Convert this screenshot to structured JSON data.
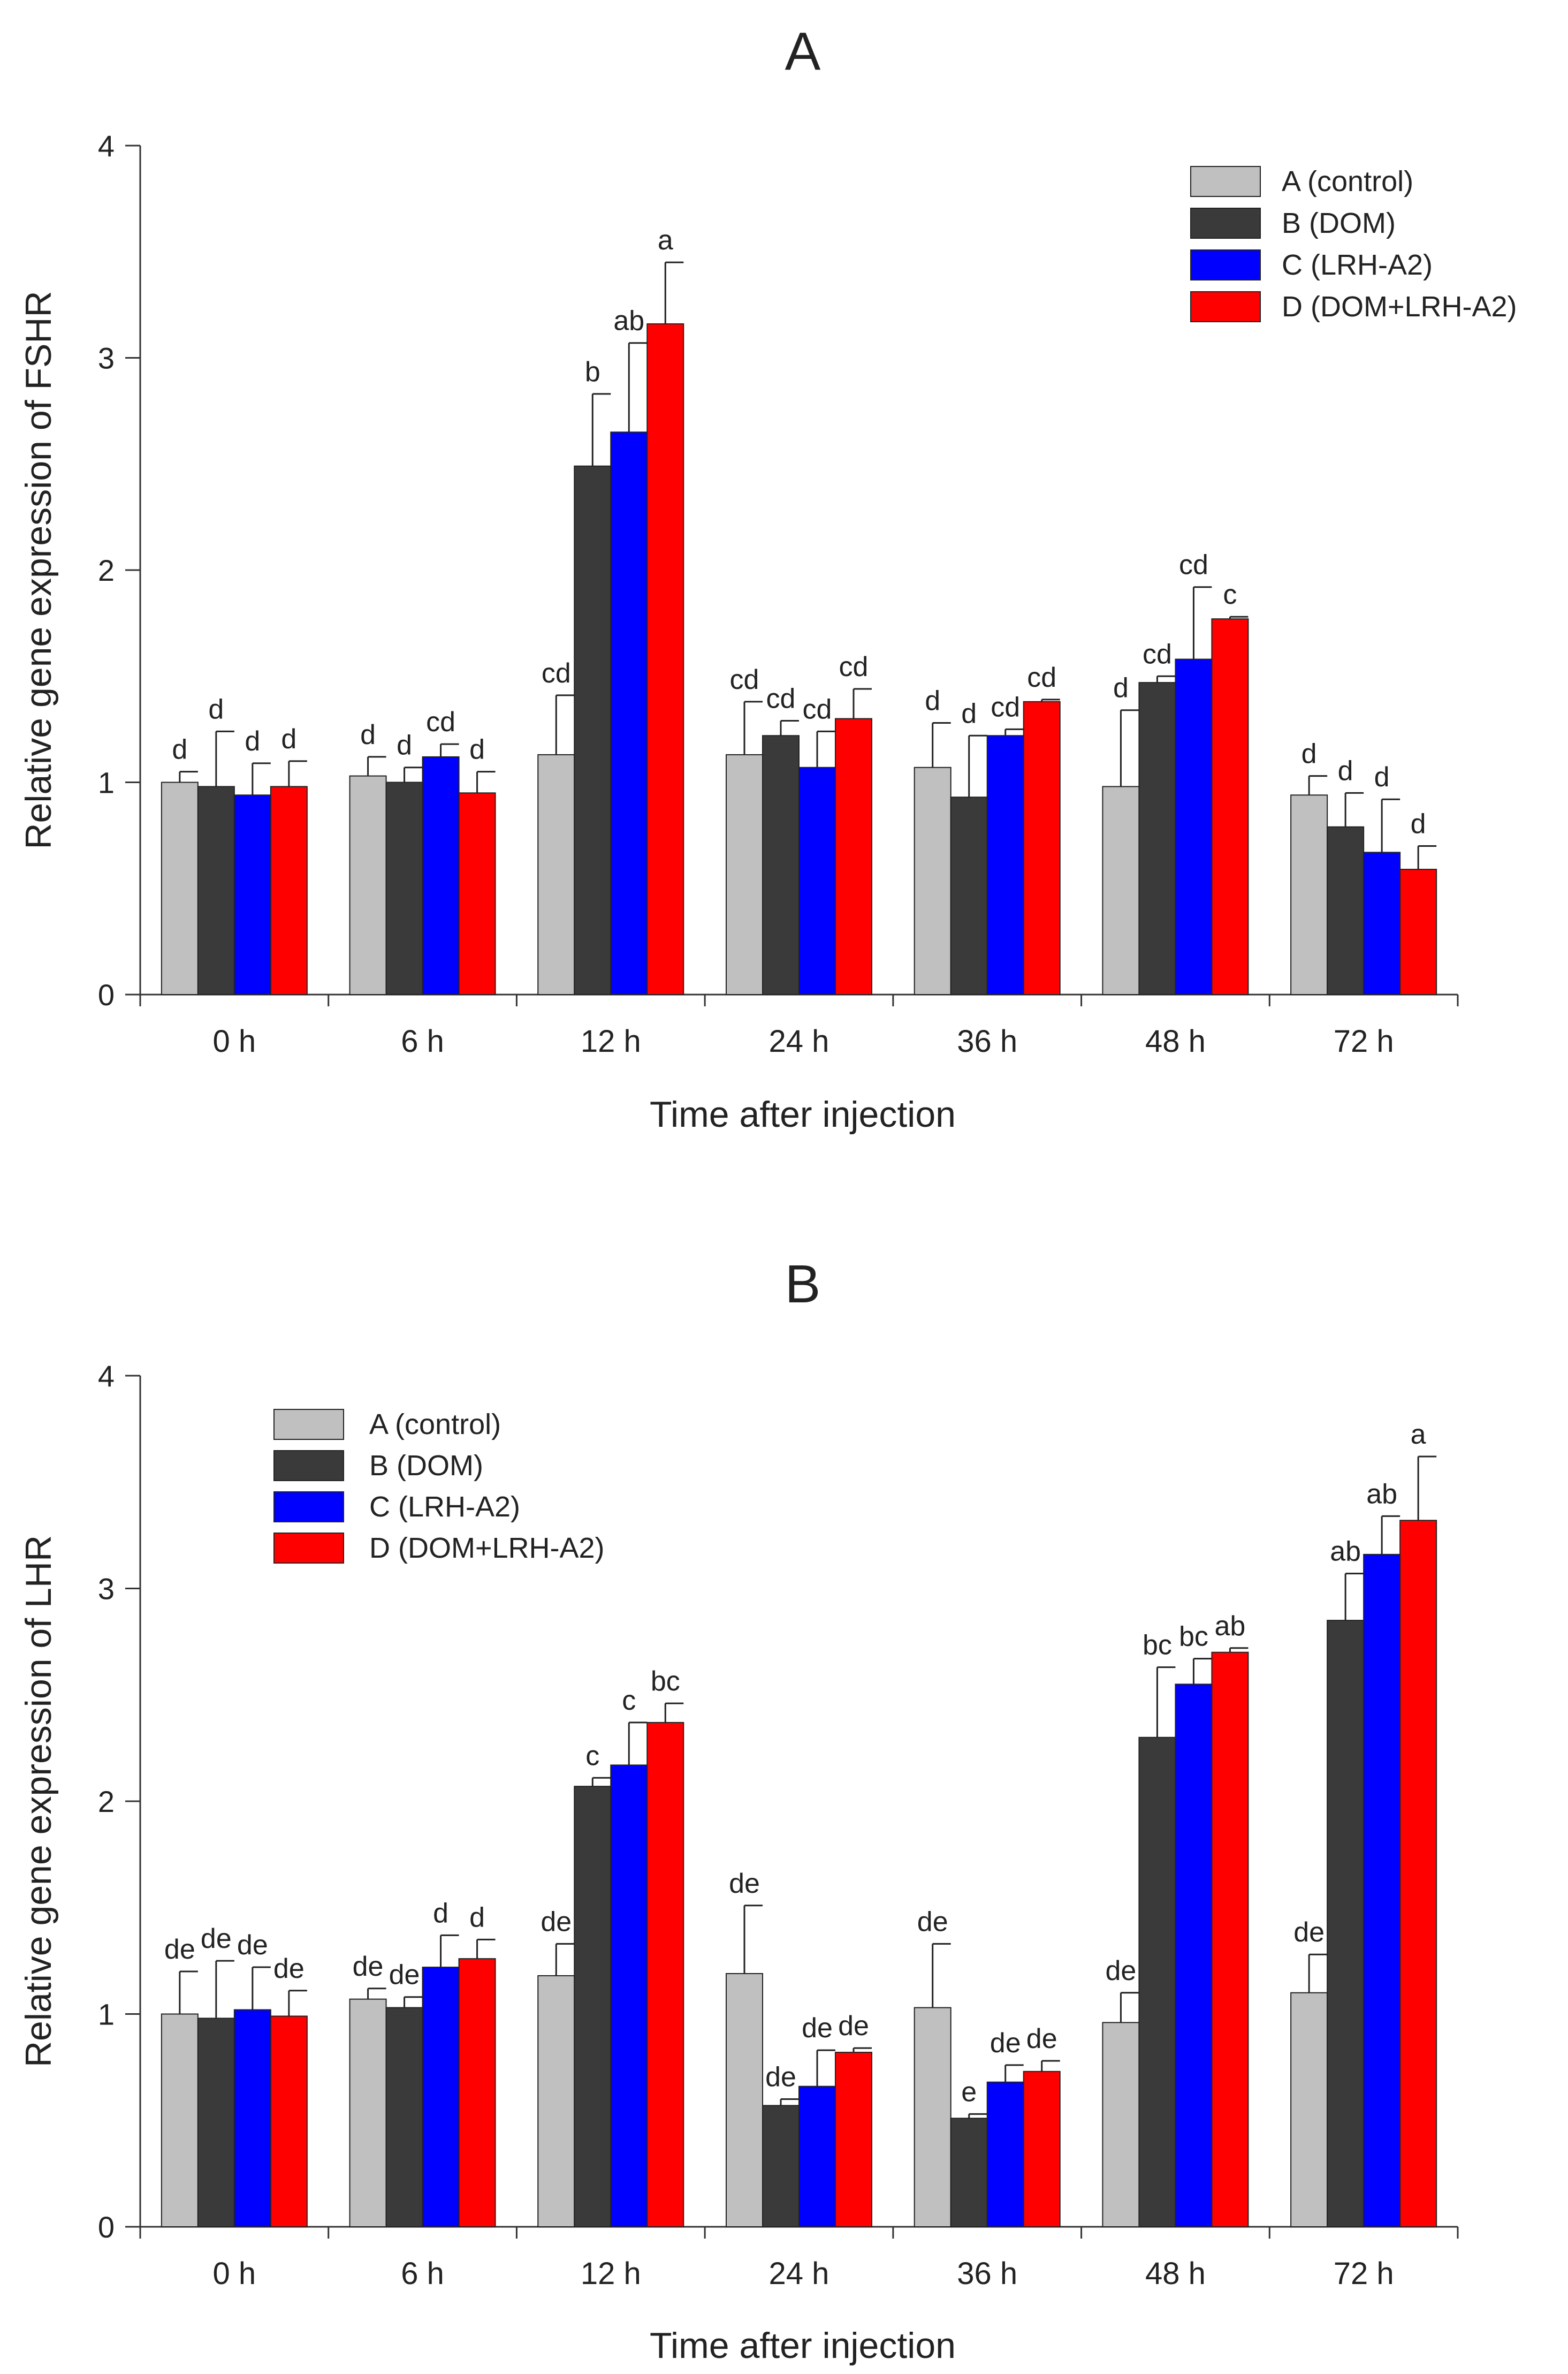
{
  "chart_data": [
    {
      "id": "A",
      "type": "bar",
      "title": "A",
      "xlabel": "Time after injection",
      "ylabel": "Relative gene expression of FSHR",
      "ylim": [
        0,
        4
      ],
      "yticks": [
        "0",
        "1",
        "2",
        "3",
        "4"
      ],
      "categories": [
        "0 h",
        "6 h",
        "12 h",
        "24 h",
        "36 h",
        "48 h",
        "72 h"
      ],
      "legend_position": "top-right",
      "series": [
        {
          "name": "A (control)",
          "color": "#c0c0c0",
          "values": [
            1.0,
            1.03,
            1.13,
            1.13,
            1.07,
            0.98,
            0.94
          ],
          "errors": [
            0.05,
            0.09,
            0.28,
            0.25,
            0.21,
            0.36,
            0.09
          ],
          "labels": [
            "d",
            "d",
            "cd",
            "cd",
            "d",
            "d",
            "d"
          ]
        },
        {
          "name": "B (DOM)",
          "color": "#3a3a3a",
          "values": [
            0.98,
            1.0,
            2.49,
            1.22,
            0.93,
            1.47,
            0.79
          ],
          "errors": [
            0.26,
            0.07,
            0.34,
            0.07,
            0.29,
            0.03,
            0.16
          ],
          "labels": [
            "d",
            "d",
            "b",
            "cd",
            "d",
            "cd",
            "d"
          ]
        },
        {
          "name": "C (LRH-A2)",
          "color": "#0000ff",
          "values": [
            0.94,
            1.12,
            2.65,
            1.07,
            1.22,
            1.58,
            0.67
          ],
          "errors": [
            0.15,
            0.06,
            0.42,
            0.17,
            0.03,
            0.34,
            0.25
          ],
          "labels": [
            "d",
            "cd",
            "ab",
            "cd",
            "cd",
            "cd",
            "d"
          ]
        },
        {
          "name": "D (DOM+LRH-A2)",
          "color": "#ff0000",
          "values": [
            0.98,
            0.95,
            3.16,
            1.3,
            1.38,
            1.77,
            0.59
          ],
          "errors": [
            0.12,
            0.1,
            0.29,
            0.14,
            0.01,
            0.01,
            0.11
          ],
          "labels": [
            "d",
            "d",
            "a",
            "cd",
            "cd",
            "c",
            "d"
          ]
        }
      ]
    },
    {
      "id": "B",
      "type": "bar",
      "title": "B",
      "xlabel": "Time after injection",
      "ylabel": "Relative gene expression of LHR",
      "ylim": [
        0,
        4
      ],
      "yticks": [
        "0",
        "1",
        "2",
        "3",
        "4"
      ],
      "categories": [
        "0 h",
        "6 h",
        "12 h",
        "24 h",
        "36 h",
        "48 h",
        "72 h"
      ],
      "legend_position": "top-left",
      "series": [
        {
          "name": "A (control)",
          "color": "#c0c0c0",
          "values": [
            1.0,
            1.07,
            1.18,
            1.19,
            1.03,
            0.96,
            1.1
          ],
          "errors": [
            0.2,
            0.05,
            0.15,
            0.32,
            0.3,
            0.14,
            0.18
          ],
          "labels": [
            "de",
            "de",
            "de",
            "de",
            "de",
            "de",
            "de"
          ]
        },
        {
          "name": "B (DOM)",
          "color": "#3a3a3a",
          "values": [
            0.98,
            1.03,
            2.07,
            0.57,
            0.51,
            2.3,
            2.85
          ],
          "errors": [
            0.27,
            0.05,
            0.04,
            0.03,
            0.02,
            0.33,
            0.22
          ],
          "labels": [
            "de",
            "de",
            "c",
            "de",
            "e",
            "bc",
            "ab"
          ]
        },
        {
          "name": "C (LRH-A2)",
          "color": "#0000ff",
          "values": [
            1.02,
            1.22,
            2.17,
            0.66,
            0.68,
            2.55,
            3.16
          ],
          "errors": [
            0.2,
            0.15,
            0.2,
            0.17,
            0.08,
            0.12,
            0.18
          ],
          "labels": [
            "de",
            "d",
            "c",
            "de",
            "de",
            "bc",
            "ab"
          ]
        },
        {
          "name": "D (DOM+LRH-A2)",
          "color": "#ff0000",
          "values": [
            0.99,
            1.26,
            2.37,
            0.82,
            0.73,
            2.7,
            3.32
          ],
          "errors": [
            0.12,
            0.09,
            0.09,
            0.02,
            0.05,
            0.02,
            0.3
          ],
          "labels": [
            "de",
            "d",
            "bc",
            "de",
            "de",
            "ab",
            "a"
          ]
        }
      ]
    }
  ]
}
